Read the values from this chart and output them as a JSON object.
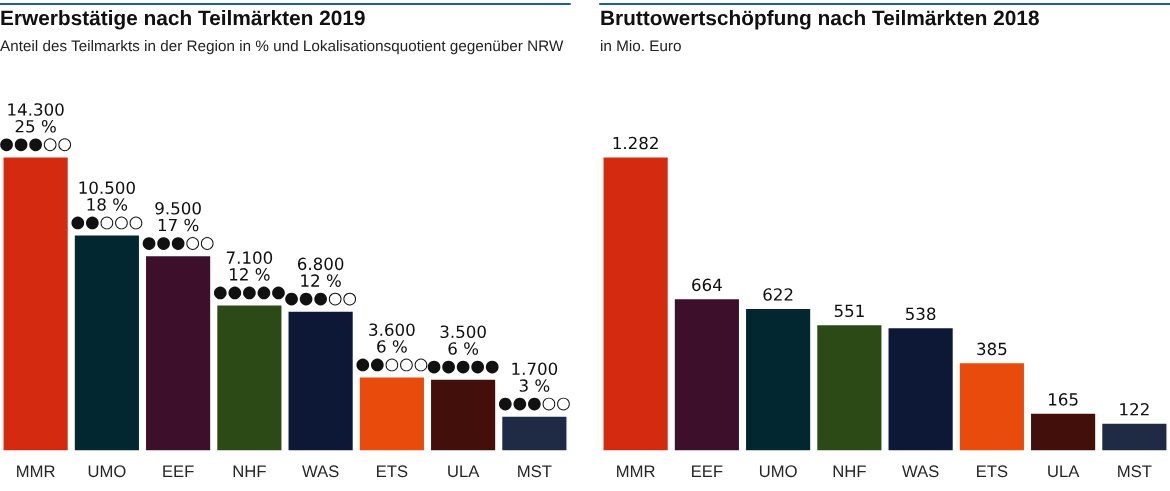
{
  "chart_data": [
    {
      "type": "bar",
      "title": "Erwerbstätige nach Teilmärkten 2019",
      "subtitle": "Anteil des Teilmarkts in der Region in % und Lokalisationsquotient gegenüber NRW",
      "categories": [
        "MMR",
        "UMO",
        "EEF",
        "NHF",
        "WAS",
        "ETS",
        "ULA",
        "MST"
      ],
      "values": [
        14300,
        10500,
        9500,
        7100,
        6800,
        3600,
        3500,
        1700
      ],
      "colors": [
        "#d42a10",
        "#032731",
        "#3d0f2b",
        "#2b4a15",
        "#0c1836",
        "#e84b0b",
        "#420f0b",
        "#1f2a45"
      ],
      "data_labels": true,
      "value_labels": [
        "14.300\n25 %\n●●●○○",
        "10.500\n18 %\n●●○○○",
        "9.500\n17 %\n●●●○○",
        "7.100\n12 %\n●●●●●",
        "6.800\n12 %\n●●●○○",
        "3.600\n6 %\n●●○○○",
        "3.500\n6 %\n●●●●●",
        "1.700\n3 %\n●●●○○"
      ]
    },
    {
      "type": "bar",
      "title": "Bruttowertschöpfung nach Teilmärkten 2018",
      "subtitle": "in Mio. Euro",
      "categories": [
        "MMR",
        "EEF",
        "UMO",
        "NHF",
        "WAS",
        "ETS",
        "ULA",
        "MST"
      ],
      "values": [
        1282,
        664,
        622,
        551,
        538,
        385,
        165,
        122
      ],
      "colors": [
        "#d42a10",
        "#3d0f2b",
        "#032731",
        "#2b4a15",
        "#0c1836",
        "#e84b0b",
        "#420f0b",
        "#1f2a45"
      ],
      "data_labels": true,
      "value_labels": [
        "1.282",
        "664",
        "622",
        "551",
        "538",
        "385",
        "165",
        "122"
      ]
    }
  ]
}
